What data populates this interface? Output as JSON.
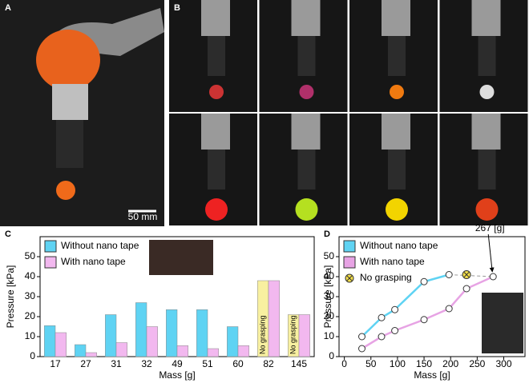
{
  "panel_labels": [
    "A",
    "B",
    "C",
    "D"
  ],
  "scale_bar": "50 mm",
  "chart_data": [
    {
      "type": "bar",
      "xlabel": "Mass [g]",
      "ylabel": "Pressure [kPa]",
      "categories": [
        "17",
        "27",
        "31",
        "32",
        "49",
        "51",
        "60",
        "82",
        "145"
      ],
      "series": [
        {
          "name": "Without nano tape",
          "color": "#5fd3f3",
          "values": [
            15.5,
            6,
            21,
            27,
            23.5,
            23.5,
            15,
            null,
            null
          ]
        },
        {
          "name": "With nano tape",
          "color": "#f2b8ef",
          "values": [
            12,
            2,
            7,
            15,
            5.5,
            4,
            5.5,
            38,
            21
          ]
        }
      ],
      "no_grasping": {
        "label": "No grasping",
        "color": "#f8f0a0",
        "values": [
          null,
          null,
          null,
          null,
          null,
          null,
          null,
          38,
          21
        ]
      },
      "ylim": [
        0,
        60
      ],
      "yticks": [
        0,
        10,
        20,
        30,
        40,
        50
      ],
      "legend": "upper left"
    },
    {
      "type": "line",
      "xlabel": "Mass [g]",
      "ylabel": "Pressure [kPa]",
      "series": [
        {
          "name": "Without nano tape",
          "color": "#5fd3f3",
          "x": [
            33,
            70,
            95,
            150,
            197
          ],
          "values": [
            10,
            19.5,
            23.5,
            37.5,
            41
          ]
        },
        {
          "name": "With nano tape",
          "color": "#e7a3e4",
          "x": [
            33,
            70,
            95,
            150,
            197,
            230,
            280
          ],
          "values": [
            4,
            10,
            13,
            18.5,
            24,
            34,
            40
          ]
        }
      ],
      "no_grasping": {
        "label": "No grasping",
        "color": "#f5e04a",
        "x": [
          230
        ],
        "values": [
          41
        ]
      },
      "annotation": "267 [g]",
      "xlim": [
        -10,
        340
      ],
      "xticks": [
        0,
        50,
        100,
        150,
        200,
        250,
        300
      ],
      "ylim": [
        0,
        60
      ],
      "yticks": [
        0,
        10,
        20,
        30,
        40,
        50
      ],
      "legend": "upper left"
    }
  ]
}
